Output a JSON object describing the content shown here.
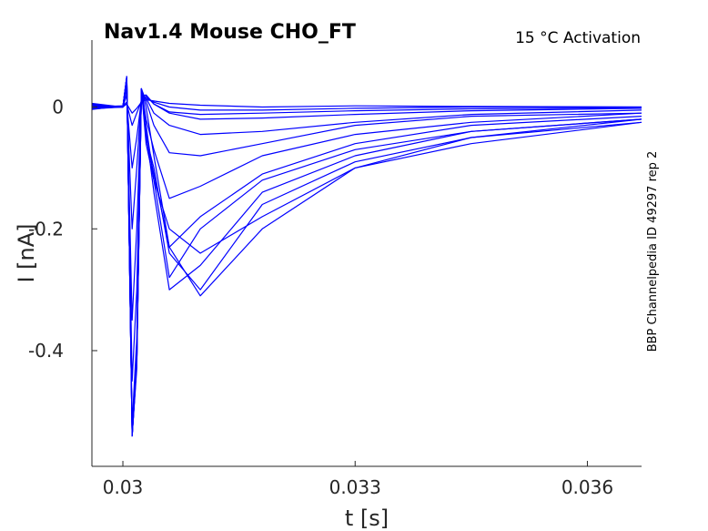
{
  "chart_data": {
    "type": "line",
    "title": "Nav1.4  Mouse  CHO_FT",
    "subtitle": "15 °C  Activation",
    "side_note": "BBP Channelpedia ID 49297 rep 2",
    "xlabel": "t [s]",
    "ylabel": "I [nA]",
    "xlim": [
      0.0296,
      0.0367
    ],
    "ylim": [
      -0.59,
      0.11
    ],
    "x_ticks": [
      {
        "value": 0.03,
        "label": "0.03"
      },
      {
        "value": 0.033,
        "label": "0.033"
      },
      {
        "value": 0.036,
        "label": "0.036"
      }
    ],
    "y_ticks": [
      {
        "value": 0,
        "label": "0"
      },
      {
        "value": -0.2,
        "label": "-0.2"
      },
      {
        "value": -0.4,
        "label": "-0.4"
      }
    ],
    "grid": false,
    "line_color": "#0000ff",
    "series": [
      {
        "x": [
          0.0296,
          0.03,
          0.03005,
          0.03012,
          0.03018,
          0.03024,
          0.0303,
          0.0304,
          0.0306,
          0.031,
          0.0318,
          0.033,
          0.0345,
          0.0367
        ],
        "y": [
          0.0,
          0.002,
          0.005,
          -0.01,
          -0.002,
          0.008,
          0.012,
          0.01,
          0.006,
          0.003,
          0.0,
          0.002,
          0.001,
          0.0
        ]
      },
      {
        "x": [
          0.0296,
          0.03,
          0.03005,
          0.03012,
          0.03018,
          0.03024,
          0.0303,
          0.0304,
          0.0306,
          0.031,
          0.0318,
          0.033,
          0.0345,
          0.0367
        ],
        "y": [
          0.003,
          0.0,
          0.005,
          -0.03,
          -0.01,
          0.01,
          0.015,
          0.008,
          0.0,
          -0.005,
          -0.005,
          -0.002,
          0.0,
          0.0
        ]
      },
      {
        "x": [
          0.0296,
          0.03,
          0.03005,
          0.03012,
          0.03018,
          0.03024,
          0.0303,
          0.0304,
          0.0306,
          0.031,
          0.0318,
          0.033,
          0.0345,
          0.0367
        ],
        "y": [
          -0.004,
          0.002,
          0.008,
          -0.1,
          -0.05,
          0.012,
          0.018,
          0.005,
          -0.008,
          -0.012,
          -0.01,
          -0.006,
          -0.003,
          -0.001
        ]
      },
      {
        "x": [
          0.0296,
          0.03,
          0.03005,
          0.03012,
          0.03018,
          0.03024,
          0.0303,
          0.0304,
          0.0306,
          0.031,
          0.0318,
          0.033,
          0.0345,
          0.0367
        ],
        "y": [
          0.005,
          0.0,
          0.02,
          -0.2,
          -0.1,
          0.018,
          0.02,
          0.005,
          -0.01,
          -0.02,
          -0.018,
          -0.012,
          -0.006,
          -0.002
        ]
      },
      {
        "x": [
          0.0296,
          0.03,
          0.03005,
          0.03012,
          0.03018,
          0.03024,
          0.0303,
          0.0304,
          0.0306,
          0.031,
          0.0318,
          0.033,
          0.0345,
          0.0367
        ],
        "y": [
          0.0,
          0.0,
          0.03,
          -0.35,
          -0.2,
          0.02,
          0.015,
          -0.01,
          -0.03,
          -0.045,
          -0.04,
          -0.025,
          -0.012,
          -0.005
        ]
      },
      {
        "x": [
          0.0296,
          0.03,
          0.03005,
          0.03012,
          0.03018,
          0.03024,
          0.0303,
          0.0304,
          0.0306,
          0.031,
          0.0318,
          0.033,
          0.0345,
          0.0367
        ],
        "y": [
          0.002,
          0.0,
          0.04,
          -0.45,
          -0.3,
          0.03,
          0.01,
          -0.03,
          -0.075,
          -0.08,
          -0.06,
          -0.03,
          -0.015,
          -0.01
        ]
      },
      {
        "x": [
          0.0296,
          0.03,
          0.03005,
          0.03012,
          0.03018,
          0.03024,
          0.0303,
          0.0304,
          0.0306,
          0.031,
          0.0318,
          0.033,
          0.0345,
          0.0367
        ],
        "y": [
          -0.002,
          0.0,
          0.045,
          -0.52,
          -0.38,
          0.03,
          -0.02,
          -0.07,
          -0.15,
          -0.13,
          -0.08,
          -0.045,
          -0.025,
          -0.01
        ]
      },
      {
        "x": [
          0.0296,
          0.03,
          0.03005,
          0.03012,
          0.03018,
          0.03024,
          0.0303,
          0.0304,
          0.0306,
          0.031,
          0.0318,
          0.033,
          0.0345,
          0.0367
        ],
        "y": [
          0.003,
          0.0,
          0.05,
          -0.54,
          -0.4,
          0.03,
          0.0,
          -0.08,
          -0.23,
          -0.18,
          -0.11,
          -0.06,
          -0.03,
          -0.015
        ]
      },
      {
        "x": [
          0.0296,
          0.03,
          0.03005,
          0.03012,
          0.03018,
          0.03024,
          0.0303,
          0.0304,
          0.0306,
          0.031,
          0.0318,
          0.033,
          0.0345,
          0.0367
        ],
        "y": [
          0.0,
          0.0,
          0.05,
          -0.54,
          -0.42,
          0.03,
          -0.03,
          -0.12,
          -0.28,
          -0.2,
          -0.12,
          -0.07,
          -0.04,
          -0.02
        ]
      },
      {
        "x": [
          0.0296,
          0.03,
          0.03005,
          0.03012,
          0.03018,
          0.03024,
          0.0303,
          0.0304,
          0.0306,
          0.031,
          0.0318,
          0.033,
          0.0345,
          0.0367
        ],
        "y": [
          0.004,
          0.0,
          0.05,
          -0.54,
          -0.43,
          0.03,
          -0.04,
          -0.14,
          -0.3,
          -0.26,
          -0.14,
          -0.08,
          -0.04,
          -0.02
        ]
      },
      {
        "x": [
          0.0296,
          0.03,
          0.03005,
          0.03012,
          0.03018,
          0.03024,
          0.0303,
          0.0304,
          0.0306,
          0.031,
          0.0318,
          0.033,
          0.0345,
          0.0367
        ],
        "y": [
          -0.003,
          0.0,
          0.05,
          -0.54,
          -0.42,
          0.03,
          -0.05,
          -0.1,
          -0.24,
          -0.3,
          -0.16,
          -0.09,
          -0.05,
          -0.02
        ]
      },
      {
        "x": [
          0.0296,
          0.03,
          0.03005,
          0.03012,
          0.03018,
          0.03024,
          0.0303,
          0.0304,
          0.0306,
          0.031,
          0.0318,
          0.033,
          0.0345,
          0.0367
        ],
        "y": [
          0.006,
          0.0,
          0.05,
          -0.54,
          -0.42,
          0.03,
          -0.05,
          -0.11,
          -0.23,
          -0.31,
          -0.2,
          -0.1,
          -0.05,
          -0.025
        ]
      },
      {
        "x": [
          0.0296,
          0.03,
          0.03005,
          0.03012,
          0.03018,
          0.03024,
          0.0303,
          0.0304,
          0.0306,
          0.031,
          0.0318,
          0.033,
          0.0345,
          0.0367
        ],
        "y": [
          0.0,
          0.0,
          0.05,
          -0.54,
          -0.42,
          0.03,
          -0.06,
          -0.12,
          -0.2,
          -0.24,
          -0.18,
          -0.1,
          -0.06,
          -0.025
        ]
      }
    ]
  }
}
